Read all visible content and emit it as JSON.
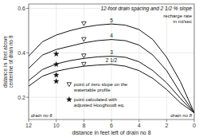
{
  "chart_data": {
    "type": "line",
    "title": "12-foot drain spacing and 2 1/2 % slope",
    "xlabel": "distance in feet left of drain no 8",
    "ylabel": "distance in  feet above\ncenterline of drain no 8",
    "x": [
      0,
      1,
      2,
      3,
      4,
      5,
      6,
      7,
      8,
      9,
      10,
      11,
      12
    ],
    "xlim": [
      12,
      0
    ],
    "ylim": [
      0.1,
      0.62
    ],
    "xticks": [
      12,
      10,
      8,
      6,
      4,
      2,
      0
    ],
    "yticks": [
      0.2,
      0.4,
      0.6
    ],
    "grid": true,
    "legend": "bottom",
    "annotations": [
      "recharge rate\nin mi/sec",
      "drain no 6",
      "drain no 8"
    ],
    "series": [
      {
        "name": "5",
        "type": "line",
        "color": "#111111",
        "values": [
          0.13,
          0.27,
          0.38,
          0.46,
          0.505,
          0.525,
          0.53,
          0.525,
          0.515,
          0.5,
          0.48,
          0.45,
          0.385
        ]
      },
      {
        "name": "4",
        "type": "line",
        "color": "#111111",
        "values": [
          0.13,
          0.22,
          0.32,
          0.39,
          0.435,
          0.455,
          0.46,
          0.455,
          0.445,
          0.43,
          0.415,
          0.39,
          0.33
        ]
      },
      {
        "name": "3",
        "type": "line",
        "color": "#111111",
        "values": [
          0.13,
          0.195,
          0.265,
          0.32,
          0.36,
          0.38,
          0.385,
          0.382,
          0.375,
          0.365,
          0.35,
          0.325,
          0.275
        ]
      },
      {
        "name": "2 1/2",
        "type": "line",
        "color": "#111111",
        "values": [
          0.13,
          0.175,
          0.235,
          0.285,
          0.32,
          0.34,
          0.348,
          0.345,
          0.34,
          0.33,
          0.317,
          0.295,
          0.25
        ]
      },
      {
        "name": "point of zero slope on the\nwatertable profile",
        "type": "scatter",
        "marker": "triangle-down-open",
        "color": "#111111",
        "x": [
          8.0,
          8.0,
          8.0,
          8.0
        ],
        "values": [
          0.532,
          0.461,
          0.387,
          0.349
        ]
      },
      {
        "name": "point calculated with\nadjusted Hooghoudt eq.",
        "type": "scatter",
        "marker": "star",
        "color": "#111111",
        "x": [
          10.0,
          10.0,
          10.0,
          10.0
        ],
        "values": [
          0.395,
          0.348,
          0.3,
          0.272
        ]
      }
    ]
  }
}
